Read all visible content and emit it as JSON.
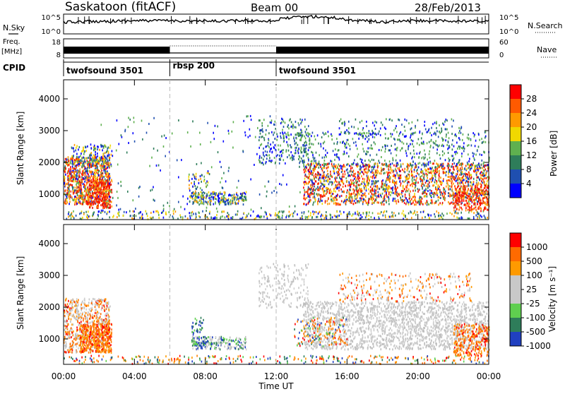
{
  "header": {
    "station": "Saskatoon (fitACF)",
    "beam": "Beam 00",
    "date": "28/Feb/2013"
  },
  "noise_panel": {
    "left_label": "N.Sky",
    "right_label": "N.Search",
    "left_ticks": [
      "10^5",
      "10^0"
    ],
    "right_ticks": [
      "10^5",
      "10^0"
    ]
  },
  "freq_panel": {
    "left_label_1": "Freq.",
    "left_label_2": "[MHz]",
    "left_ticks": [
      "18",
      "8"
    ],
    "right_label": "Nave",
    "right_ticks": [
      "60",
      "0"
    ]
  },
  "cpid_panel": {
    "label": "CPID",
    "segments": [
      {
        "name": "twofsound 3501",
        "start_hour": 0,
        "end_hour": 6
      },
      {
        "name": "rbsp 200",
        "start_hour": 6,
        "end_hour": 12
      },
      {
        "name": "twofsound 3501",
        "start_hour": 12,
        "end_hour": 24
      }
    ]
  },
  "power_panel": {
    "ylabel": "Slant Range [km]",
    "yticks": [
      "1000",
      "2000",
      "3000",
      "4000"
    ],
    "colorbar_label": "Power [dB]",
    "colorbar_ticks": [
      "4",
      "8",
      "12",
      "16",
      "20",
      "24",
      "28"
    ],
    "colorbar_colors": [
      "#0000ff",
      "#1f4fb0",
      "#2e7d5a",
      "#5fb04f",
      "#f0d800",
      "#ff9a00",
      "#ff5a00",
      "#ff0000"
    ]
  },
  "velocity_panel": {
    "ylabel": "Slant Range [km]",
    "yticks": [
      "1000",
      "2000",
      "3000",
      "4000"
    ],
    "colorbar_label": "Velocity [m s⁻¹]",
    "colorbar_ticks": [
      "1000",
      "500",
      "100",
      "25",
      "-25",
      "-100",
      "-500",
      "-1000"
    ],
    "colorbar_colors": [
      "#2040c0",
      "#2e7d5a",
      "#5fcf4f",
      "#c8c8c8",
      "#c8c8c8",
      "#ff9a00",
      "#ff6a00",
      "#ff0000"
    ]
  },
  "x_axis": {
    "label": "Time UT",
    "ticks": [
      "00:00",
      "04:00",
      "08:00",
      "12:00",
      "16:00",
      "20:00",
      "00:00"
    ]
  },
  "chart_data": [
    {
      "type": "line",
      "title": "Saskatoon (fitACF) Beam 00 28/Feb/2013",
      "series": [
        {
          "name": "N.Sky",
          "x": [
            0,
            2,
            4,
            6,
            8,
            10,
            12,
            14,
            16,
            18,
            20,
            22,
            24
          ],
          "values": [
            1000,
            2000,
            3000,
            3000,
            2000,
            3000,
            3000,
            50000,
            5000,
            1000,
            3000,
            2000,
            2000
          ]
        },
        {
          "name": "N.Search",
          "x": [
            0,
            2,
            4,
            6,
            8,
            10,
            12,
            14,
            16,
            18,
            20,
            22,
            24
          ],
          "values": [
            1000,
            2000,
            3000,
            3000,
            2000,
            3000,
            3000,
            50000,
            5000,
            1000,
            3000,
            2000,
            2000
          ]
        }
      ],
      "ylim": [
        1,
        100000
      ],
      "log_scale": true
    },
    {
      "type": "line",
      "series": [
        {
          "name": "Freq.",
          "x": [
            0,
            6,
            6,
            12,
            12,
            24
          ],
          "values": [
            11,
            11,
            9,
            9,
            11,
            11
          ]
        },
        {
          "name": "Nave",
          "x": [
            0,
            6,
            6,
            12,
            12,
            24
          ],
          "values": [
            20,
            20,
            60,
            60,
            20,
            20
          ]
        }
      ],
      "ylim": [
        8,
        18
      ]
    },
    {
      "type": "heatmap",
      "xlabel": "Time UT",
      "ylabel": "Slant Range [km]",
      "colorbar": "Power [dB]",
      "xlim": [
        0,
        24
      ],
      "ylim": [
        200,
        4600
      ],
      "clim": [
        0,
        32
      ]
    },
    {
      "type": "heatmap",
      "xlabel": "Time UT",
      "ylabel": "Slant Range [km]",
      "colorbar": "Velocity [m s⁻¹]",
      "xlim": [
        0,
        24
      ],
      "ylim": [
        200,
        4600
      ],
      "clim": [
        -1000,
        1000
      ]
    }
  ]
}
